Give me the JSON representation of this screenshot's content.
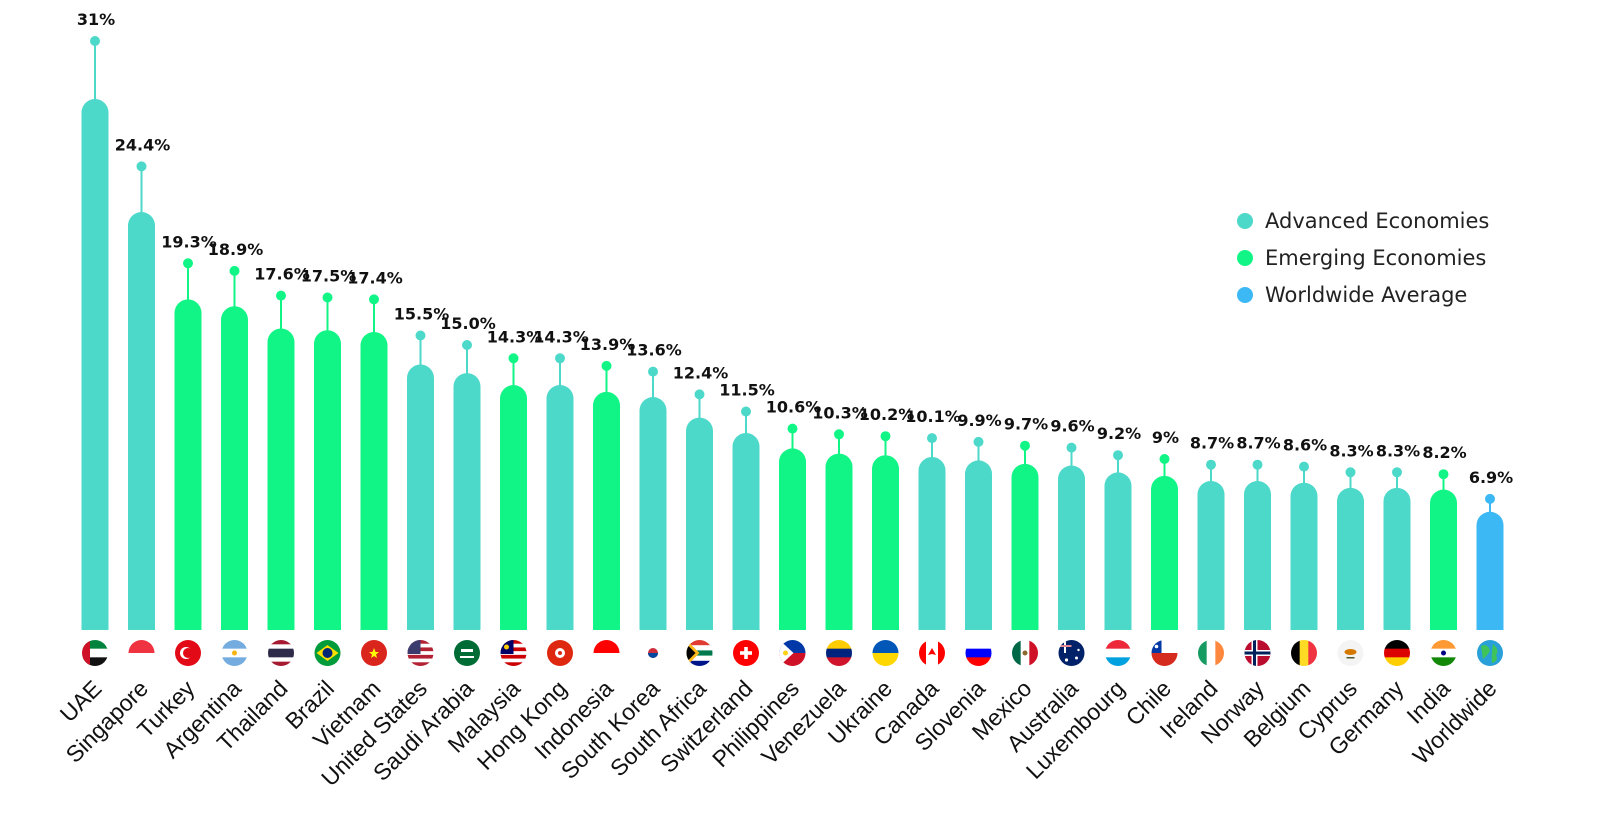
{
  "chart_data": {
    "type": "bar",
    "title": "",
    "xlabel": "",
    "ylabel": "",
    "ylim": [
      0,
      31
    ],
    "legend": [
      "Advanced Economies",
      "Emerging Economies",
      "Worldwide Average"
    ],
    "legend_position": "right",
    "colors": {
      "advanced": "#4dd9c9",
      "emerging": "#11f586",
      "worldwide": "#3cb8f5"
    },
    "categories": [
      "UAE",
      "Singapore",
      "Turkey",
      "Argentina",
      "Thailand",
      "Brazil",
      "Vietnam",
      "United States",
      "Saudi Arabia",
      "Malaysia",
      "Hong Kong",
      "Indonesia",
      "South Korea",
      "South Africa",
      "Switzerland",
      "Philippines",
      "Venezuela",
      "Ukraine",
      "Canada",
      "Slovenia",
      "Mexico",
      "Australia",
      "Luxembourg",
      "Chile",
      "Ireland",
      "Norway",
      "Belgium",
      "Cyprus",
      "Germany",
      "India",
      "Worldwide"
    ],
    "values": [
      31,
      24.4,
      19.3,
      18.9,
      17.6,
      17.5,
      17.4,
      15.5,
      15.0,
      14.3,
      14.3,
      13.9,
      13.6,
      12.4,
      11.5,
      10.6,
      10.3,
      10.2,
      10.1,
      9.9,
      9.7,
      9.6,
      9.2,
      9,
      8.7,
      8.7,
      8.6,
      8.3,
      8.3,
      8.2,
      6.9
    ],
    "labels": [
      "31%",
      "24.4%",
      "19.3%",
      "18.9%",
      "17.6%",
      "17.5%",
      "17.4%",
      "15.5%",
      "15.0%",
      "14.3%",
      "14.3%",
      "13.9%",
      "13.6%",
      "12.4%",
      "11.5%",
      "10.6%",
      "10.3%",
      "10.2%",
      "10.1%",
      "9.9%",
      "9.7%",
      "9.6%",
      "9.2%",
      "9%",
      "8.7%",
      "8.7%",
      "8.6%",
      "8.3%",
      "8.3%",
      "8.2%",
      "6.9%"
    ],
    "groups": [
      "advanced",
      "advanced",
      "emerging",
      "emerging",
      "emerging",
      "emerging",
      "emerging",
      "advanced",
      "advanced",
      "emerging",
      "advanced",
      "emerging",
      "advanced",
      "advanced",
      "advanced",
      "emerging",
      "emerging",
      "emerging",
      "advanced",
      "advanced",
      "emerging",
      "advanced",
      "advanced",
      "emerging",
      "advanced",
      "advanced",
      "advanced",
      "advanced",
      "advanced",
      "emerging",
      "worldwide"
    ],
    "flag_icons": [
      "flag-uae-icon",
      "flag-singapore-icon",
      "flag-turkey-icon",
      "flag-argentina-icon",
      "flag-thailand-icon",
      "flag-brazil-icon",
      "flag-vietnam-icon",
      "flag-united-states-icon",
      "flag-saudi-arabia-icon",
      "flag-malaysia-icon",
      "flag-hong-kong-icon",
      "flag-indonesia-icon",
      "flag-south-korea-icon",
      "flag-south-africa-icon",
      "flag-switzerland-icon",
      "flag-philippines-icon",
      "flag-venezuela-icon",
      "flag-ukraine-icon",
      "flag-canada-icon",
      "flag-slovenia-icon",
      "flag-mexico-icon",
      "flag-australia-icon",
      "flag-luxembourg-icon",
      "flag-chile-icon",
      "flag-ireland-icon",
      "flag-norway-icon",
      "flag-belgium-icon",
      "flag-cyprus-icon",
      "flag-germany-icon",
      "flag-india-icon",
      "globe-icon"
    ]
  }
}
